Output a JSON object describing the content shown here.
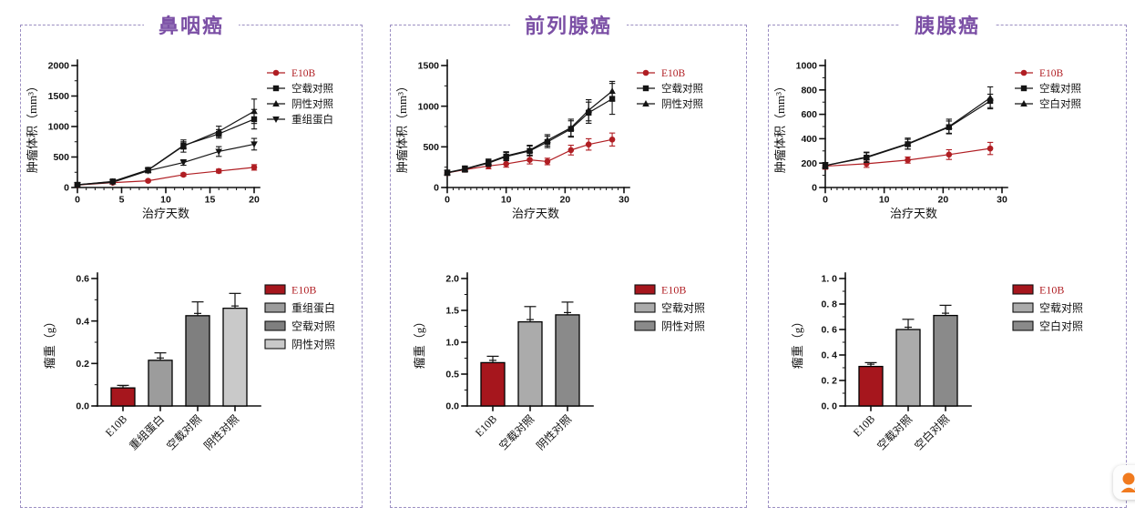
{
  "theme": {
    "title_color": "#7b4fa5",
    "panel_border_color": "#9b8ec2",
    "e10b_red": "#b01e23",
    "bar_red": "#a6161d",
    "axis_color": "#111111",
    "widget_orange": "#f07a1e"
  },
  "panels": [
    {
      "id": "nasopharyngeal-cancer",
      "title": "鼻咽癌",
      "line_chart": 0,
      "bar_chart": 1
    },
    {
      "id": "prostate-cancer",
      "title": "前列腺癌",
      "line_chart": 2,
      "bar_chart": 3
    },
    {
      "id": "pancreatic-cancer",
      "title": "胰腺癌",
      "line_chart": 4,
      "bar_chart": 5
    }
  ],
  "widget": {
    "name": "customer-service",
    "color": "#f07a1e"
  },
  "chart_data": [
    {
      "type": "line",
      "panel": "鼻咽癌",
      "xlabel": "治疗天数",
      "ylabel": "肿瘤体积（mm³）",
      "xlim": [
        0,
        20
      ],
      "ylim": [
        0,
        2000
      ],
      "xticks": [
        0,
        5,
        10,
        15,
        20
      ],
      "xtick_labels": [
        "0",
        "5",
        "10",
        "15",
        "20"
      ],
      "yticks": [
        0,
        500,
        1000,
        1500,
        2000
      ],
      "ytick_labels": [
        "0",
        "500",
        "1000",
        "1500",
        "2000"
      ],
      "x_minor_step": 1,
      "y_minor_step": 250,
      "grid": false,
      "legend_position": "right",
      "x": [
        0,
        4,
        8,
        12,
        16,
        20
      ],
      "series": [
        {
          "name": "E10B",
          "marker": "circle",
          "color": "#b01e23",
          "values": [
            40,
            80,
            110,
            210,
            270,
            330
          ],
          "errors": [
            12,
            12,
            18,
            25,
            30,
            45
          ]
        },
        {
          "name": "空载对照",
          "marker": "square",
          "color": "#141414",
          "values": [
            45,
            100,
            290,
            690,
            880,
            1120
          ],
          "errors": [
            15,
            20,
            35,
            60,
            70,
            160
          ]
        },
        {
          "name": "阴性对照",
          "marker": "tri-up",
          "color": "#141414",
          "values": [
            45,
            95,
            285,
            680,
            920,
            1250
          ],
          "errors": [
            15,
            20,
            35,
            100,
            85,
            200
          ]
        },
        {
          "name": "重组蛋白",
          "marker": "tri-down",
          "color": "#141414",
          "values": [
            45,
            85,
            275,
            410,
            590,
            710
          ],
          "errors": [
            15,
            15,
            35,
            45,
            80,
            95
          ]
        }
      ]
    },
    {
      "type": "bar",
      "panel": "鼻咽癌",
      "xlabel": "",
      "ylabel": "瘤重（g）",
      "ylim": [
        0,
        0.6
      ],
      "yticks": [
        0,
        0.2,
        0.4,
        0.6
      ],
      "ytick_labels": [
        "0.0",
        "0.2",
        "0.4",
        "0.6"
      ],
      "y_minor_step": 0.1,
      "grid": false,
      "legend_position": "right",
      "categories": [
        "E10B",
        "重组蛋白",
        "空载对照",
        "阴性对照"
      ],
      "values": [
        0.085,
        0.215,
        0.425,
        0.46
      ],
      "errors": [
        0.012,
        0.035,
        0.065,
        0.07
      ],
      "bar_colors": [
        "#a6161d",
        "#9c9c9c",
        "#7f7f7f",
        "#c9c9c9"
      ]
    },
    {
      "type": "line",
      "panel": "前列腺癌",
      "xlabel": "治疗天数",
      "ylabel": "肿瘤体积（mm³）",
      "xlim": [
        0,
        30
      ],
      "ylim": [
        0,
        1500
      ],
      "xticks": [
        0,
        10,
        20,
        30
      ],
      "xtick_labels": [
        "0",
        "10",
        "20",
        "30"
      ],
      "yticks": [
        0,
        500,
        1000,
        1500
      ],
      "ytick_labels": [
        "0",
        "500",
        "1000",
        "1500"
      ],
      "x_minor_step": 1,
      "y_minor_step": 250,
      "grid": false,
      "legend_position": "right",
      "x": [
        0,
        3,
        7,
        10,
        14,
        17,
        21,
        24,
        28
      ],
      "series": [
        {
          "name": "E10B",
          "marker": "circle",
          "color": "#b01e23",
          "values": [
            180,
            220,
            265,
            290,
            340,
            320,
            460,
            530,
            590
          ],
          "errors": [
            30,
            30,
            35,
            40,
            50,
            40,
            60,
            70,
            80
          ]
        },
        {
          "name": "空载对照",
          "marker": "square",
          "color": "#141414",
          "values": [
            180,
            225,
            300,
            380,
            450,
            560,
            720,
            920,
            1090
          ],
          "errors": [
            30,
            35,
            40,
            50,
            60,
            70,
            100,
            130,
            190
          ]
        },
        {
          "name": "阴性对照",
          "marker": "tri-up",
          "color": "#141414",
          "values": [
            185,
            230,
            310,
            390,
            460,
            580,
            735,
            950,
            1185
          ],
          "errors": [
            30,
            35,
            40,
            50,
            60,
            70,
            105,
            130,
            120
          ]
        }
      ]
    },
    {
      "type": "bar",
      "panel": "前列腺癌",
      "xlabel": "",
      "ylabel": "瘤重（g）",
      "ylim": [
        0,
        2.0
      ],
      "yticks": [
        0,
        0.5,
        1.0,
        1.5,
        2.0
      ],
      "ytick_labels": [
        "0.0",
        "0.5",
        "1.0",
        "1.5",
        "2.0"
      ],
      "y_minor_step": 0.25,
      "grid": false,
      "legend_position": "right",
      "categories": [
        "E10B",
        "空载对照",
        "阴性对照"
      ],
      "values": [
        0.68,
        1.32,
        1.43
      ],
      "errors": [
        0.1,
        0.24,
        0.2
      ],
      "bar_colors": [
        "#a6161d",
        "#ababab",
        "#8a8a8a"
      ]
    },
    {
      "type": "line",
      "panel": "胰腺癌",
      "xlabel": "治疗天数",
      "ylabel": "肿瘤体积（mm³）",
      "xlim": [
        0,
        30
      ],
      "ylim": [
        0,
        1000
      ],
      "xticks": [
        0,
        10,
        20,
        30
      ],
      "xtick_labels": [
        "0",
        "10",
        "20",
        "30"
      ],
      "yticks": [
        0,
        200,
        400,
        600,
        800,
        1000
      ],
      "ytick_labels": [
        "0",
        "200",
        "400",
        "600",
        "800",
        "1000"
      ],
      "x_minor_step": 1,
      "y_minor_step": 100,
      "grid": false,
      "legend_position": "right",
      "x": [
        0,
        7,
        14,
        21,
        28
      ],
      "series": [
        {
          "name": "E10B",
          "marker": "circle",
          "color": "#b01e23",
          "values": [
            175,
            195,
            225,
            270,
            320
          ],
          "errors": [
            25,
            30,
            25,
            40,
            50
          ]
        },
        {
          "name": "空载对照",
          "marker": "square",
          "color": "#141414",
          "values": [
            180,
            245,
            355,
            495,
            710
          ],
          "errors": [
            25,
            40,
            40,
            50,
            55
          ]
        },
        {
          "name": "空白对照",
          "marker": "tri-up",
          "color": "#141414",
          "values": [
            180,
            250,
            360,
            500,
            735
          ],
          "errors": [
            25,
            40,
            45,
            60,
            90
          ]
        }
      ]
    },
    {
      "type": "bar",
      "panel": "胰腺癌",
      "xlabel": "",
      "ylabel": "瘤重（g）",
      "ylim": [
        0,
        1.0
      ],
      "yticks": [
        0,
        0.2,
        0.4,
        0.6,
        0.8,
        1.0
      ],
      "ytick_labels": [
        "0. 0",
        "0. 2",
        "0. 4",
        "0. 6",
        "0. 8",
        "1. 0"
      ],
      "y_minor_step": 0.1,
      "grid": false,
      "legend_position": "right",
      "categories": [
        "E10B",
        "空载对照",
        "空白对照"
      ],
      "values": [
        0.31,
        0.6,
        0.71
      ],
      "errors": [
        0.03,
        0.08,
        0.08
      ],
      "bar_colors": [
        "#a6161d",
        "#ababab",
        "#8a8a8a"
      ]
    }
  ]
}
